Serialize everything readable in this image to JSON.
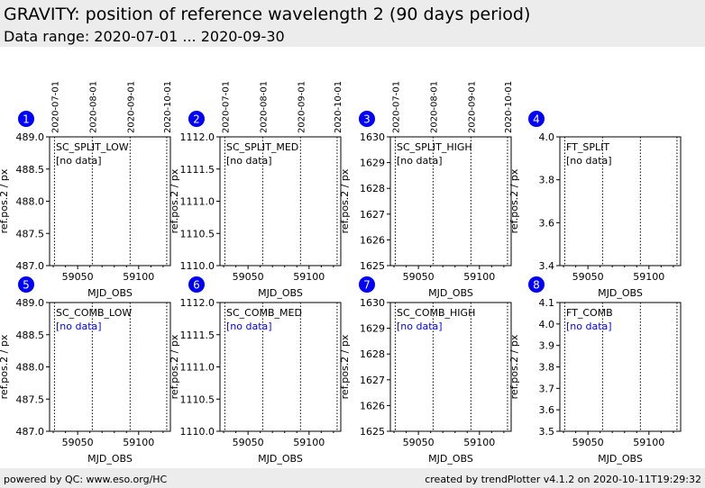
{
  "header": {
    "title": "GRAVITY: position of reference wavelength 2 (90 days period)",
    "subtitle": "Data range: 2020-07-01 ... 2020-09-30"
  },
  "footer": {
    "left": "powered by QC: www.eso.org/HC",
    "right": "created by trendPlotter v4.1.2 on 2020-10-11T19:29:32"
  },
  "colors": {
    "badge": "#0000ff",
    "note_blue": "#0000ff",
    "note_black": "#000000",
    "header_bg": "#ececec"
  },
  "chart_data": {
    "type": "scatter",
    "xlim": [
      59027,
      59126
    ],
    "x_ticks": [
      59050,
      59100
    ],
    "x_tick_labels": [
      "59050",
      "59100"
    ],
    "date_lines": [
      59031,
      59062,
      59093,
      59123
    ],
    "date_labels": [
      "2020-07-01",
      "2020-08-01",
      "2020-09-01",
      "2020-10-01"
    ],
    "xlabel": "MJD_OBS",
    "panels": [
      {
        "id": "1",
        "name": "SC_SPLIT_LOW",
        "note": "[no data]",
        "note_color": "black",
        "ylabel": "ref.pos.2 / px",
        "ylim": [
          487.0,
          489.0
        ],
        "yticks": [
          "487.0",
          "487.5",
          "488.0",
          "488.5",
          "489.0"
        ],
        "show_dates": true,
        "points": []
      },
      {
        "id": "2",
        "name": "SC_SPLIT_MED",
        "note": "[no data]",
        "note_color": "black",
        "ylabel": "ref.pos.2 / px",
        "ylim": [
          1110.0,
          1112.0
        ],
        "yticks": [
          "1110.0",
          "1110.5",
          "1111.0",
          "1111.5",
          "1112.0"
        ],
        "show_dates": true,
        "points": []
      },
      {
        "id": "3",
        "name": "SC_SPLIT_HIGH",
        "note": "[no data]",
        "note_color": "black",
        "ylabel": "ref.pos.2 / px",
        "ylim": [
          1625,
          1630
        ],
        "yticks": [
          "1625",
          "1626",
          "1627",
          "1628",
          "1629",
          "1630"
        ],
        "show_dates": true,
        "points": []
      },
      {
        "id": "4",
        "name": "FT_SPLIT",
        "note": "[no data]",
        "note_color": "black",
        "ylabel": "ref.pos.2 / px",
        "ylim": [
          3.4,
          4.0
        ],
        "yticks": [
          "3.4",
          "3.6",
          "3.8",
          "4.0"
        ],
        "show_dates": false,
        "points": []
      },
      {
        "id": "5",
        "name": "SC_COMB_LOW",
        "note": "[no data]",
        "note_color": "blue",
        "ylabel": "ref.pos.2 / px",
        "ylim": [
          487.0,
          489.0
        ],
        "yticks": [
          "487.0",
          "487.5",
          "488.0",
          "488.5",
          "489.0"
        ],
        "show_dates": false,
        "points": []
      },
      {
        "id": "6",
        "name": "SC_COMB_MED",
        "note": "[no data]",
        "note_color": "blue",
        "ylabel": "ref.pos.2 / px",
        "ylim": [
          1110.0,
          1112.0
        ],
        "yticks": [
          "1110.0",
          "1110.5",
          "1111.0",
          "1111.5",
          "1112.0"
        ],
        "show_dates": false,
        "points": []
      },
      {
        "id": "7",
        "name": "SC_COMB_HIGH",
        "note": "[no data]",
        "note_color": "blue",
        "ylabel": "ref.pos.2 / px",
        "ylim": [
          1625,
          1630
        ],
        "yticks": [
          "1625",
          "1626",
          "1627",
          "1628",
          "1629",
          "1630"
        ],
        "show_dates": false,
        "points": []
      },
      {
        "id": "8",
        "name": "FT_COMB",
        "note": "[no data]",
        "note_color": "blue",
        "ylabel": "ref.pos.2 / px",
        "ylim": [
          3.5,
          4.1
        ],
        "yticks": [
          "3.5",
          "3.6",
          "3.7",
          "3.8",
          "3.9",
          "4.0",
          "4.1"
        ],
        "show_dates": false,
        "points": []
      }
    ]
  }
}
